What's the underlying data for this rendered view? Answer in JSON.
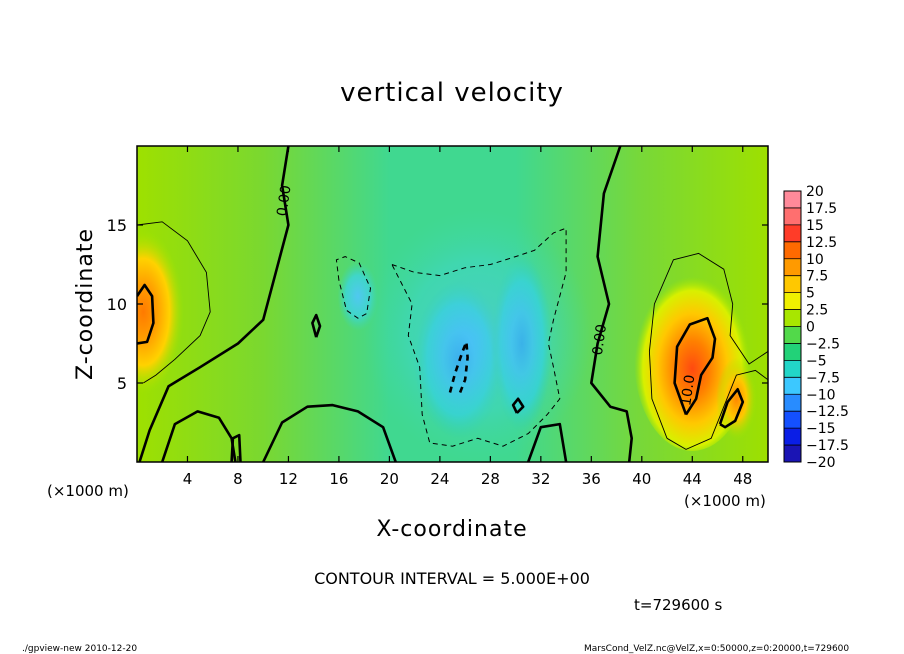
{
  "chart_data": {
    "type": "heatmap",
    "title": "vertical velocity",
    "xlabel": "X-coordinate",
    "ylabel": "Z-coordinate",
    "x_unit_left": "(×1000 m)",
    "x_unit_right": "(×1000 m)",
    "xlim": [
      0,
      50
    ],
    "ylim": [
      0,
      20
    ],
    "x_ticks": [
      4,
      8,
      12,
      16,
      20,
      24,
      28,
      32,
      36,
      40,
      44,
      48
    ],
    "y_ticks": [
      5,
      10,
      15
    ],
    "contour_labels": [
      {
        "text": "0.00",
        "x": 12,
        "y": 16.5
      },
      {
        "text": "0.00",
        "x": 37,
        "y": 7.7
      },
      {
        "text": "10.0",
        "x": 44,
        "y": 4.5
      }
    ],
    "colorbar": {
      "labels": [
        "20",
        "17.5",
        "15",
        "12.5",
        "10",
        "7.5",
        "5",
        "2.5",
        "0",
        "−2.5",
        "−5",
        "−7.5",
        "−10",
        "−12.5",
        "−15",
        "−17.5",
        "−20"
      ],
      "colors": [
        "#ff8a9a",
        "#ff6f6f",
        "#ff3c28",
        "#ff6a00",
        "#ff9a00",
        "#ffc800",
        "#f0f000",
        "#a8e600",
        "#52d94a",
        "#22d278",
        "#22d6c8",
        "#3cc8ff",
        "#288cff",
        "#1450ff",
        "#0a1ee6",
        "#1a14b4",
        "#7a14c8"
      ]
    },
    "regions": [
      {
        "type": "positive",
        "value": 11,
        "x": 0.5,
        "y": 9.5
      },
      {
        "type": "positive",
        "value": 14,
        "x": 44,
        "y": 6.5
      },
      {
        "type": "positive",
        "value": 7,
        "x": 47.5,
        "y": 4
      },
      {
        "type": "negative",
        "value": -10,
        "x": 25.5,
        "y": 6.5
      },
      {
        "type": "negative",
        "value": -6,
        "x": 30.5,
        "y": 7.5
      },
      {
        "type": "negative",
        "value": -4,
        "x": 17.5,
        "y": 10.5
      }
    ],
    "grid": false
  },
  "annotations": {
    "contour_interval": "CONTOUR INTERVAL = 5.000E+00",
    "time": "t=729600 s",
    "footer_left": "./gpview-new  2010-12-20",
    "footer_right": "MarsCond_VelZ.nc@VelZ,x=0:50000,z=0:20000,t=729600"
  }
}
